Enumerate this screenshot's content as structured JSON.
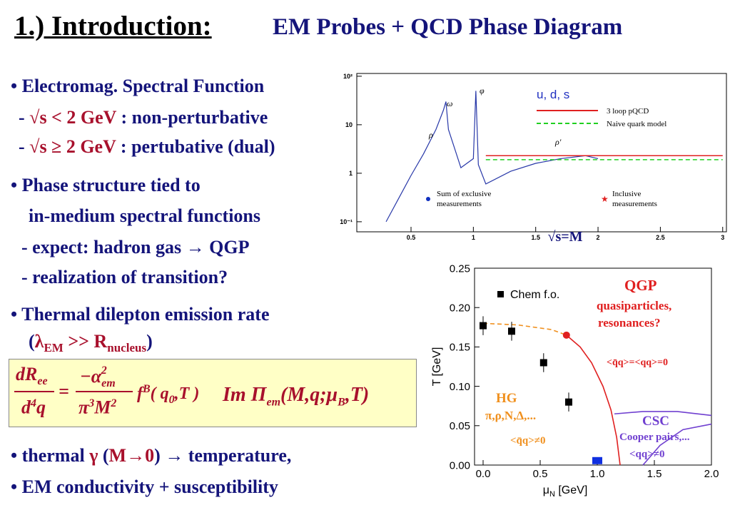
{
  "title": {
    "main": "1.) Introduction:",
    "sub": "EM Probes + QCD Phase Diagram"
  },
  "bullets": {
    "b1": "• Electromag. Spectral Function",
    "b1a": [
      "- ",
      "√s < 2 GeV",
      " : non-perturbative"
    ],
    "b1b": [
      "- ",
      "√s ≥ 2 GeV",
      " : pertubative (dual)"
    ],
    "b2": "• Phase structure tied to",
    "b2a": "in-medium spectral functions",
    "b2b": "- expect:  hadron gas → QGP",
    "b2c": "- realization of transition?",
    "b3": "• Thermal dilepton emission rate",
    "b3a": [
      "(",
      "λ",
      "EM",
      " >> R",
      "nucleus",
      ")"
    ],
    "b4": [
      "• thermal ",
      "γ",
      " (",
      "M→0",
      ") →  temperature,"
    ],
    "b5": "• EM conductivity + susceptibility"
  },
  "formula": {
    "num": [
      "dR",
      "ee"
    ],
    "den": [
      "d",
      "4",
      "q"
    ],
    "eq": "=",
    "num2": [
      "−α",
      "em",
      "2"
    ],
    "den2": [
      "π",
      "3",
      "M",
      "2"
    ],
    "f": [
      "f",
      "B",
      "( q",
      "0",
      ",T )"
    ],
    "im": [
      "Im Π",
      "em",
      "(M,q;μ",
      "B",
      ",T)"
    ]
  },
  "spectrum": {
    "type": "line",
    "log_y": true,
    "xlabel": "√s=M",
    "legend_title": "u, d, s",
    "xlim": [
      0.065,
      3.03
    ],
    "ylim": [
      0.062,
      114
    ],
    "xticks": [
      0.5,
      1,
      1.5,
      2,
      2.5,
      3
    ],
    "yticks": [
      {
        "value": 100,
        "label": "10²"
      },
      {
        "value": 10,
        "label": "10"
      },
      {
        "value": 1,
        "label": "1"
      },
      {
        "value": 0.1,
        "label": "10⁻¹"
      }
    ],
    "series": [
      {
        "color": "#2838a8",
        "x": [
          0.3,
          0.4,
          0.5,
          0.6,
          0.7,
          0.76,
          0.78,
          0.8,
          0.9,
          1.0,
          1.02,
          1.04,
          1.1,
          1.3,
          1.5,
          1.7,
          1.9,
          2.0
        ],
        "values": [
          0.1,
          0.3,
          0.9,
          2.5,
          8,
          20,
          30,
          8,
          1.3,
          2,
          50,
          1.5,
          0.6,
          1.1,
          1.6,
          2.0,
          2.3,
          2.0
        ]
      },
      {
        "name": "3 loop pQCD",
        "color": "#e02020",
        "x": [
          1.1,
          3
        ],
        "values": [
          2.3,
          2.3
        ]
      },
      {
        "name": "Naive quark model",
        "color": "#20d020",
        "dashed": true,
        "x": [
          1.1,
          3
        ],
        "values": [
          1.9,
          1.9
        ]
      }
    ],
    "annotations": [
      "ω",
      "φ",
      "ρ",
      "ρ'"
    ],
    "marker_legend": [
      {
        "label": [
          "Sum of exclusive",
          "measurements"
        ],
        "color": "#1030c0"
      },
      {
        "label": [
          "Inclusive",
          "measurements"
        ],
        "color": "#e02020"
      }
    ]
  },
  "phase": {
    "type": "scatter",
    "xlabel": [
      "μ",
      "N",
      " [GeV]"
    ],
    "ylabel": "T [GeV]",
    "xlim": [
      -0.075,
      2
    ],
    "ylim": [
      0,
      0.25
    ],
    "xticks": [
      {
        "value": 0,
        "label": "0.0"
      },
      0.5,
      {
        "value": 1,
        "label": "1.0"
      },
      1.5,
      {
        "value": 2,
        "label": "2.0"
      }
    ],
    "yticks": [
      {
        "value": 0,
        "label": "0.00"
      },
      0.05,
      {
        "value": 0.1,
        "label": "0.10"
      },
      0.15,
      {
        "value": 0.2,
        "label": "0.20"
      },
      0.25
    ],
    "series": [
      {
        "name": "Chem f.o.",
        "color": "#000000",
        "x": [
          0,
          0.25,
          0.53,
          0.75
        ],
        "values": [
          0.177,
          0.17,
          0.13,
          0.08
        ],
        "errors": [
          0.012,
          0.012,
          0.012,
          0.012
        ]
      }
    ],
    "curves": [
      {
        "color": "#f0901e",
        "dashed": true,
        "x": [
          0,
          0.3,
          0.6,
          0.73
        ],
        "values": [
          0.18,
          0.178,
          0.172,
          0.165
        ]
      },
      {
        "color": "#e02020",
        "x": [
          0.73,
          0.85,
          0.95,
          1.05,
          1.12,
          1.17,
          1.2
        ],
        "values": [
          0.165,
          0.15,
          0.13,
          0.1,
          0.07,
          0.035,
          0
        ]
      },
      {
        "color": "#7040d0",
        "x": [
          1.15,
          1.4,
          1.7,
          2
        ],
        "values": [
          0.065,
          0.068,
          0.068,
          0.063
        ]
      },
      {
        "color": "#7040d0",
        "x": [
          1.4,
          1.55,
          1.75,
          2
        ],
        "values": [
          0,
          0.025,
          0.045,
          0.052
        ]
      }
    ],
    "critical_point": {
      "color": "#e02020",
      "x": 0.73,
      "value": 0.165
    },
    "square": {
      "color": "#1030e0",
      "x": 1.0,
      "value": 0.002
    },
    "annotations": [
      "QGP",
      "quasiparticles,",
      "resonances?",
      "<q̄q>=<qq>=0",
      "HG",
      "π,ρ,N,Δ,...",
      "<q̄q>≠0",
      "CSC",
      "Cooper pairs,...",
      "<qq>≠0"
    ]
  }
}
